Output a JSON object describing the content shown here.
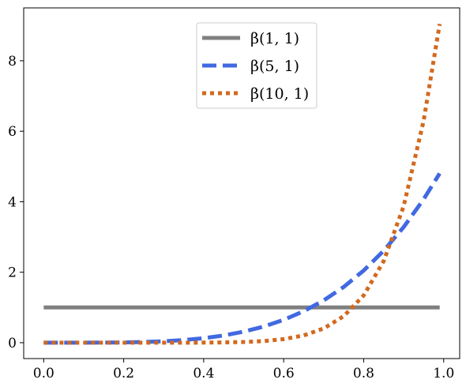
{
  "chart_data": {
    "type": "line",
    "title": "",
    "xlabel": "",
    "ylabel": "",
    "xlim": [
      -0.05,
      1.04
    ],
    "ylim": [
      -0.45,
      9.5
    ],
    "xticks": [
      0.0,
      0.2,
      0.4,
      0.6,
      0.8,
      1.0
    ],
    "xtick_labels": [
      "0.0",
      "0.2",
      "0.4",
      "0.6",
      "0.8",
      "1.0"
    ],
    "yticks": [
      0,
      2,
      4,
      6,
      8
    ],
    "ytick_labels": [
      "0",
      "2",
      "4",
      "6",
      "8"
    ],
    "grid": false,
    "legend_position": "top-center",
    "x": [
      0.0,
      0.05,
      0.1,
      0.15,
      0.2,
      0.25,
      0.3,
      0.35,
      0.4,
      0.45,
      0.5,
      0.55,
      0.6,
      0.65,
      0.7,
      0.75,
      0.8,
      0.85,
      0.9,
      0.95,
      0.99
    ],
    "series": [
      {
        "name": "β(1, 1)",
        "color": "#808080",
        "style": "solid",
        "values": [
          1,
          1,
          1,
          1,
          1,
          1,
          1,
          1,
          1,
          1,
          1,
          1,
          1,
          1,
          1,
          1,
          1,
          1,
          1,
          1,
          1
        ]
      },
      {
        "name": "β(5, 1)",
        "color": "#4169e1",
        "style": "dashed",
        "values": [
          0,
          0,
          0.001,
          0.003,
          0.008,
          0.02,
          0.041,
          0.075,
          0.128,
          0.205,
          0.313,
          0.458,
          0.648,
          0.893,
          1.2,
          1.582,
          2.048,
          2.61,
          3.281,
          4.073,
          4.803
        ]
      },
      {
        "name": "β(10, 1)",
        "color": "#d2691e",
        "style": "dotted",
        "values": [
          0,
          0,
          0,
          0,
          0,
          0,
          0,
          0,
          0.003,
          0.008,
          0.02,
          0.046,
          0.101,
          0.207,
          0.404,
          0.751,
          1.342,
          2.316,
          3.874,
          6.302,
          9.044
        ]
      }
    ]
  }
}
